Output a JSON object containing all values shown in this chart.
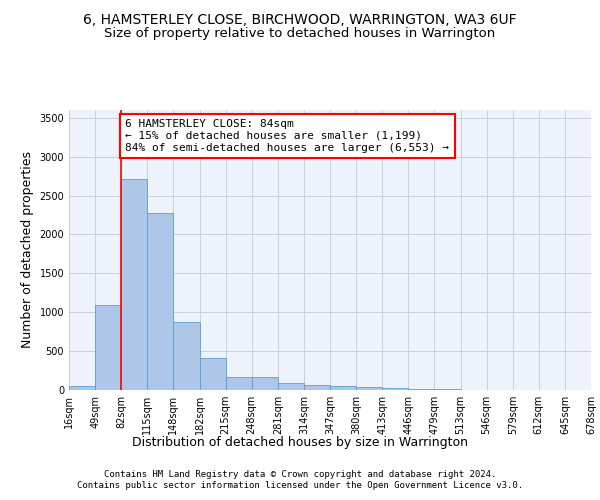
{
  "title_line1": "6, HAMSTERLEY CLOSE, BIRCHWOOD, WARRINGTON, WA3 6UF",
  "title_line2": "Size of property relative to detached houses in Warrington",
  "xlabel": "Distribution of detached houses by size in Warrington",
  "ylabel": "Number of detached properties",
  "bar_values": [
    50,
    1090,
    2710,
    2270,
    880,
    415,
    170,
    170,
    90,
    60,
    50,
    35,
    20,
    15,
    10,
    5,
    5,
    5,
    5,
    5
  ],
  "bin_labels": [
    "16sqm",
    "49sqm",
    "82sqm",
    "115sqm",
    "148sqm",
    "182sqm",
    "215sqm",
    "248sqm",
    "281sqm",
    "314sqm",
    "347sqm",
    "380sqm",
    "413sqm",
    "446sqm",
    "479sqm",
    "513sqm",
    "546sqm",
    "579sqm",
    "612sqm",
    "645sqm",
    "678sqm"
  ],
  "bar_color": "#aec6e8",
  "bar_edge_color": "#5a9fd4",
  "background_color": "#eef2fb",
  "grid_color": "#c8d0e0",
  "annotation_box_text": "6 HAMSTERLEY CLOSE: 84sqm\n← 15% of detached houses are smaller (1,199)\n84% of semi-detached houses are larger (6,553) →",
  "annotation_box_color": "white",
  "annotation_box_edge_color": "red",
  "vline_color": "red",
  "ylim": [
    0,
    3600
  ],
  "yticks": [
    0,
    500,
    1000,
    1500,
    2000,
    2500,
    3000,
    3500
  ],
  "footer_text": "Contains HM Land Registry data © Crown copyright and database right 2024.\nContains public sector information licensed under the Open Government Licence v3.0.",
  "title_fontsize": 10,
  "subtitle_fontsize": 9.5,
  "label_fontsize": 9,
  "tick_fontsize": 7,
  "annotation_fontsize": 8,
  "footer_fontsize": 6.5
}
